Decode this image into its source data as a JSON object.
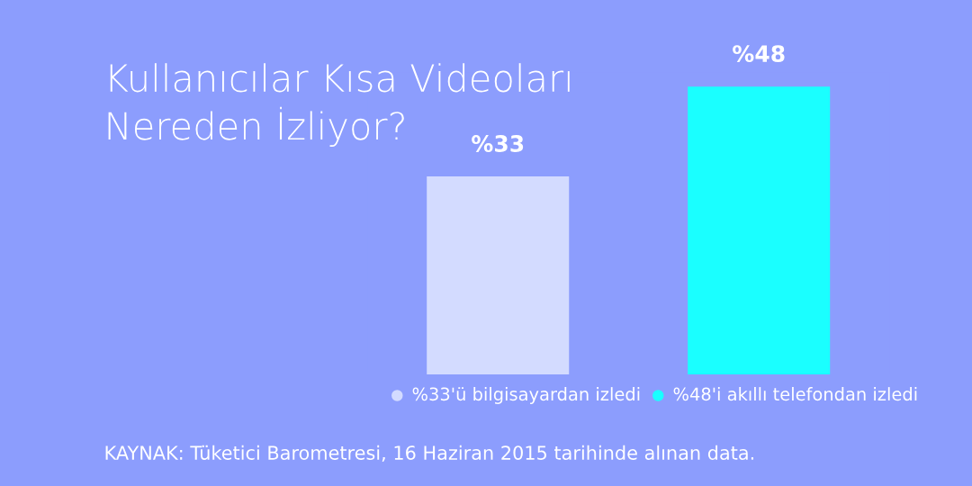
{
  "chart_data": {
    "type": "bar",
    "title": "Kullanıcılar Kısa Videoları\nNereden İzliyor?",
    "categories": [
      "%33'ü bilgisayardan izledi",
      "%48'i akıllı telefondan izledi"
    ],
    "values": [
      33,
      48
    ],
    "colors": [
      "#d3dbff",
      "#1affff"
    ],
    "value_labels": [
      "%33",
      "%48"
    ],
    "tick_labels": "x",
    "annotations": [
      "KAYNAK: Tüketici Barometresi, 16 Haziran 2015 tarihinde alınan data."
    ]
  }
}
